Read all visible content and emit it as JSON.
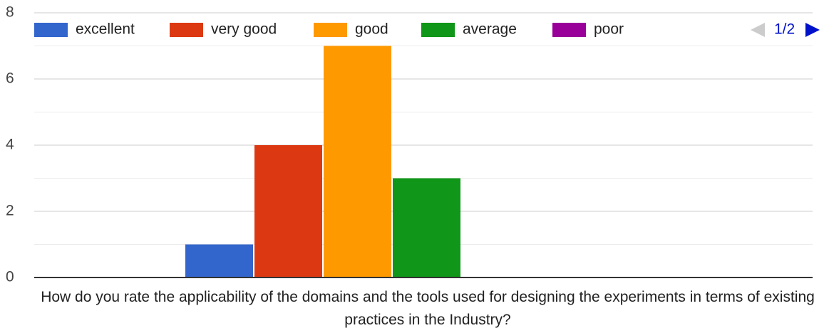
{
  "chart_data": {
    "type": "bar",
    "title": "How do you rate the applicability of the domains and the tools used for designing the experiments in terms of existing practices in the Industry?",
    "series": [
      {
        "name": "excellent",
        "color": "#3366cc",
        "values": [
          1
        ]
      },
      {
        "name": "very good",
        "color": "#dc3912",
        "values": [
          4
        ]
      },
      {
        "name": "good",
        "color": "#ff9900",
        "values": [
          7
        ]
      },
      {
        "name": "average",
        "color": "#109618",
        "values": [
          3
        ]
      },
      {
        "name": "poor",
        "color": "#990099",
        "values": [
          0
        ]
      }
    ],
    "legend_page": "1/2",
    "legend": "top",
    "ylim": [
      0,
      8
    ],
    "yticks": [
      0,
      2,
      4,
      6,
      8
    ],
    "grid": true,
    "minor_grid": true
  }
}
